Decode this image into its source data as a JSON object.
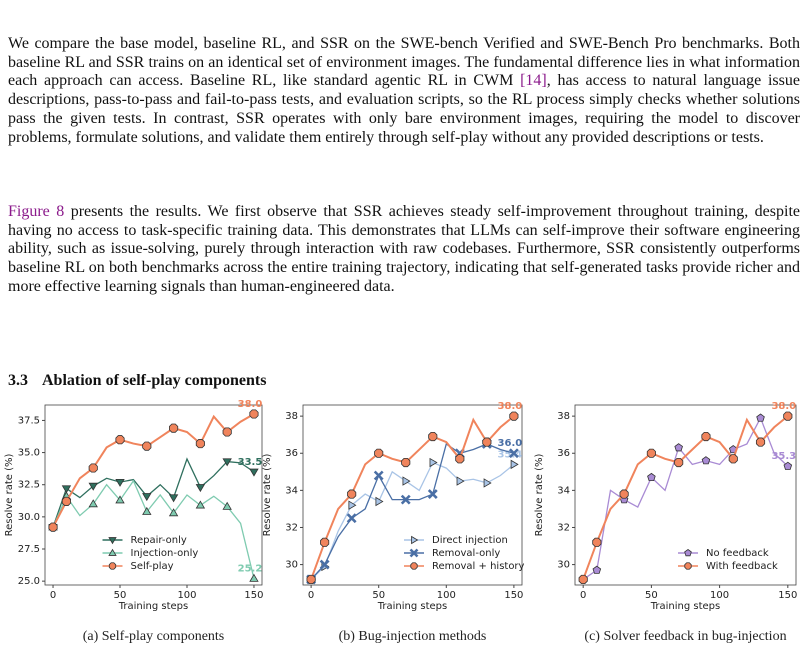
{
  "paragraphs": [
    {
      "parts": [
        "We compare the base model, baseline RL, and SSR on the SWE-bench Verified and SWE-Bench Pro benchmarks. Both baseline RL and SSR trains on an identical set of environment images. The fundamental difference lies in what information each approach can access. Baseline RL, like standard agentic RL in CWM ",
        "[14]",
        ", has access to natural language issue descriptions, pass-to-pass and fail-to-pass tests, and evaluation scripts, so the RL process simply checks whether solutions pass the given tests. In contrast, SSR operates with only bare environment images, requiring the model to discover problems, formulate solutions, and validate them entirely through self-play without any provided descriptions or tests."
      ]
    },
    {
      "parts": [
        "Figure 8",
        " presents the results. We first observe that SSR achieves steady self-improvement throughout training, despite having no access to task-specific training data. This demonstrates that LLMs can self-improve their software engineering ability, such as issue-solving, purely through interaction with raw codebases. Furthermore, SSR consistently outperforms baseline RL on both benchmarks across the entire training trajectory, indicating that self-generated tasks provide richer and more effective learning signals than human-engineered data."
      ]
    }
  ],
  "section": {
    "number": "3.3",
    "title": "Ablation of self-play components"
  },
  "chart_data": [
    {
      "type": "line",
      "caption": "(a) Self-play components",
      "xlabel": "Training steps",
      "ylabel": "Resolve rate (%)",
      "x": [
        0,
        10,
        20,
        30,
        40,
        50,
        60,
        70,
        80,
        90,
        100,
        110,
        120,
        130,
        140,
        150
      ],
      "xlim": [
        -6,
        156
      ],
      "xticks": [
        0,
        50,
        100,
        150
      ],
      "ylim": [
        24.7,
        38.7
      ],
      "yticks": [
        {
          "value": 25,
          "label": "25.0"
        },
        27.5,
        {
          "value": 30,
          "label": "30.0"
        },
        32.5,
        {
          "value": 35,
          "label": "35.0"
        },
        37.5
      ],
      "legend": "lower center",
      "grid": false,
      "series": [
        {
          "name": "Repair-only",
          "color": "#2f6f5e",
          "marker": "triangle-down",
          "values": [
            29.2,
            32.2,
            31.5,
            32.4,
            33.0,
            32.7,
            32.9,
            31.6,
            32.5,
            31.5,
            34.5,
            32.3,
            33.2,
            34.3,
            34.2,
            33.5
          ],
          "value_labels": [
            null,
            null,
            null,
            null,
            null,
            null,
            null,
            null,
            null,
            null,
            null,
            null,
            null,
            null,
            null,
            "33.5"
          ]
        },
        {
          "name": "Injection-only",
          "color": "#7fcbb0",
          "marker": "triangle-up",
          "values": [
            29.2,
            31.6,
            30.1,
            31.0,
            32.5,
            31.3,
            32.8,
            30.4,
            31.7,
            30.3,
            31.7,
            30.9,
            31.6,
            30.8,
            29.5,
            25.2
          ],
          "value_labels": [
            null,
            null,
            null,
            null,
            null,
            null,
            null,
            null,
            null,
            null,
            null,
            null,
            null,
            null,
            null,
            "25.2"
          ]
        },
        {
          "name": "Self-play",
          "color": "#f0845c",
          "marker": "circle",
          "values": [
            29.2,
            31.2,
            33.0,
            33.8,
            35.4,
            36.0,
            35.7,
            35.5,
            36.2,
            36.9,
            36.6,
            35.7,
            37.8,
            36.6,
            37.4,
            38.0
          ],
          "value_labels": [
            null,
            null,
            null,
            null,
            null,
            null,
            null,
            null,
            null,
            null,
            null,
            null,
            null,
            null,
            null,
            "38.0"
          ]
        }
      ]
    },
    {
      "type": "line",
      "caption": "(b) Bug-injection methods",
      "xlabel": "Training steps",
      "ylabel": "Resolve rate (%)",
      "x": [
        0,
        10,
        20,
        30,
        40,
        50,
        60,
        70,
        80,
        90,
        100,
        110,
        120,
        130,
        140,
        150
      ],
      "xlim": [
        -6,
        156
      ],
      "xticks": [
        0,
        50,
        100,
        150
      ],
      "ylim": [
        28.9,
        38.6
      ],
      "yticks": [
        30,
        32,
        34,
        36,
        38
      ],
      "legend": "lower right",
      "grid": false,
      "series": [
        {
          "name": "Direct injection",
          "color": "#a9c4e6",
          "marker": "triangle-right",
          "values": [
            29.2,
            29.9,
            31.8,
            33.2,
            33.8,
            33.4,
            35.0,
            34.5,
            34.0,
            35.5,
            35.2,
            34.5,
            34.6,
            34.4,
            34.8,
            35.4
          ],
          "value_labels": [
            null,
            null,
            null,
            null,
            null,
            null,
            null,
            null,
            null,
            null,
            null,
            null,
            null,
            null,
            null,
            "35.4"
          ]
        },
        {
          "name": "Removal-only",
          "color": "#4a6fa5",
          "marker": "x",
          "values": [
            29.2,
            30.0,
            31.5,
            32.5,
            33.0,
            34.8,
            33.5,
            33.5,
            33.5,
            33.8,
            36.5,
            36.0,
            36.2,
            36.5,
            36.2,
            36.0
          ],
          "value_labels": [
            null,
            null,
            null,
            null,
            null,
            null,
            null,
            null,
            null,
            null,
            null,
            null,
            null,
            null,
            null,
            "36.0"
          ]
        },
        {
          "name": "Removal + history",
          "color": "#f0845c",
          "marker": "circle",
          "values": [
            29.2,
            31.2,
            33.0,
            33.8,
            35.4,
            36.0,
            35.7,
            35.5,
            36.2,
            36.9,
            36.6,
            35.7,
            37.8,
            36.6,
            37.4,
            38.0
          ],
          "value_labels": [
            null,
            null,
            null,
            null,
            null,
            null,
            null,
            null,
            null,
            null,
            null,
            null,
            null,
            null,
            null,
            "38.0"
          ]
        }
      ]
    },
    {
      "type": "line",
      "caption": "(c) Solver feedback in bug-injection",
      "xlabel": "Training steps",
      "ylabel": "Resolve rate (%)",
      "x": [
        0,
        10,
        20,
        30,
        40,
        50,
        60,
        70,
        80,
        90,
        100,
        110,
        120,
        130,
        140,
        150
      ],
      "xlim": [
        -6,
        156
      ],
      "xticks": [
        0,
        50,
        100,
        150
      ],
      "ylim": [
        28.9,
        38.6
      ],
      "yticks": [
        30,
        32,
        34,
        36,
        38
      ],
      "legend": "lower right",
      "grid": false,
      "series": [
        {
          "name": "No feedback",
          "color": "#a98bd4",
          "marker": "pentagon",
          "values": [
            29.2,
            29.7,
            34.0,
            33.5,
            33.1,
            34.7,
            34.0,
            36.3,
            35.4,
            35.6,
            35.4,
            36.2,
            36.5,
            37.9,
            36.0,
            35.3
          ],
          "value_labels": [
            null,
            null,
            null,
            null,
            null,
            null,
            null,
            null,
            null,
            null,
            null,
            null,
            null,
            null,
            null,
            "35.3"
          ]
        },
        {
          "name": "With feedback",
          "color": "#f0845c",
          "marker": "circle",
          "values": [
            29.2,
            31.2,
            33.0,
            33.8,
            35.4,
            36.0,
            35.7,
            35.5,
            36.2,
            36.9,
            36.6,
            35.7,
            37.8,
            36.6,
            37.4,
            38.0
          ],
          "value_labels": [
            null,
            null,
            null,
            null,
            null,
            null,
            null,
            null,
            null,
            null,
            null,
            null,
            null,
            null,
            null,
            "38.0"
          ]
        }
      ]
    }
  ]
}
